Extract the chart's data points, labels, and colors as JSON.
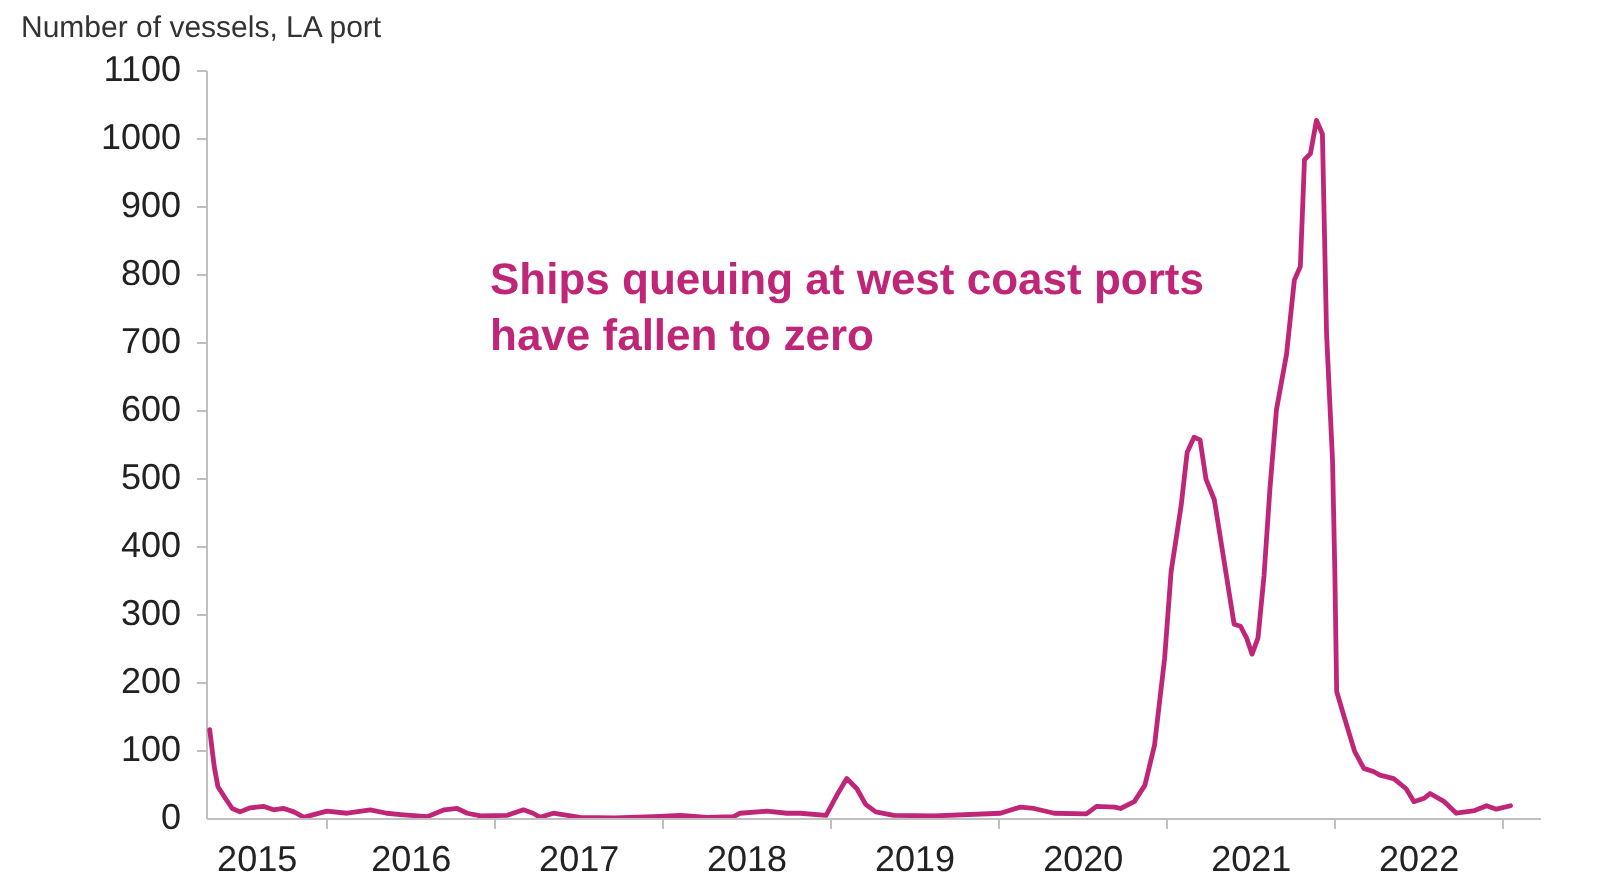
{
  "chart_data": {
    "type": "line",
    "ylabel": "Number of vessels, LA port",
    "annotations": [
      "Ships queuing at west coast ports\nhave fallen to zero"
    ],
    "x": [
      "2015-04-22",
      "2015-05-02",
      "2015-05-10",
      "2015-05-26",
      "2015-06-10",
      "2015-06-27",
      "2015-07-19",
      "2015-08-18",
      "2015-09-08",
      "2015-09-30",
      "2015-10-22",
      "2015-11-13",
      "2015-12-04",
      "2016-01-02",
      "2016-02-15",
      "2016-04-05",
      "2016-05-11",
      "2016-06-10",
      "2016-08-07",
      "2016-09-13",
      "2016-10-11",
      "2016-11-02",
      "2016-12-01",
      "2017-01-28",
      "2017-03-04",
      "2017-03-25",
      "2017-04-09",
      "2017-05-08",
      "2017-07-05",
      "2017-09-17",
      "2017-12-12",
      "2018-02-09",
      "2018-04-07",
      "2018-06-04",
      "2018-06-18",
      "2018-08-15",
      "2018-09-28",
      "2018-10-27",
      "2018-12-22",
      "2019-01-14",
      "2019-02-05",
      "2019-02-27",
      "2019-03-18",
      "2019-04-09",
      "2019-05-18",
      "2019-08-14",
      "2020-01-05",
      "2020-02-17",
      "2020-03-18",
      "2020-05-01",
      "2020-07-10",
      "2020-08-01",
      "2020-09-10",
      "2020-09-22",
      "2020-10-22",
      "2020-11-14",
      "2020-12-05",
      "2020-12-27",
      "2021-01-10",
      "2021-02-01",
      "2021-02-14",
      "2021-03-01",
      "2021-03-14",
      "2021-03-27",
      "2021-04-14",
      "2021-05-05",
      "2021-05-27",
      "2021-06-10",
      "2021-06-23",
      "2021-07-05",
      "2021-07-18",
      "2021-07-31",
      "2021-08-13",
      "2021-08-27",
      "2021-09-18",
      "2021-10-05",
      "2021-10-18",
      "2021-10-27",
      "2021-11-09",
      "2021-11-22",
      "2021-12-05",
      "2021-12-14",
      "2021-12-27",
      "2022-01-01",
      "2022-01-05",
      "2022-01-22",
      "2022-02-13",
      "2022-03-05",
      "2022-03-27",
      "2022-04-09",
      "2022-05-09",
      "2022-06-05",
      "2022-06-22",
      "2022-07-14",
      "2022-07-27",
      "2022-08-27",
      "2022-09-22",
      "2022-11-01",
      "2022-11-27",
      "2022-12-18",
      "2023-01-18"
    ],
    "series": [
      {
        "color": "#c02678",
        "values": [
          130,
          75,
          46,
          29,
          14,
          9,
          15,
          17,
          12,
          14,
          9,
          1,
          5,
          10,
          7,
          12,
          7,
          5,
          2,
          12,
          14,
          7,
          3,
          4,
          12,
          7,
          1,
          7,
          1,
          0,
          2,
          4,
          1,
          2,
          7,
          10,
          7,
          7,
          4,
          33,
          58,
          43,
          20,
          9,
          4,
          3,
          7,
          16,
          14,
          7,
          6,
          17,
          16,
          14,
          24,
          48,
          107,
          235,
          362,
          460,
          538,
          560,
          556,
          498,
          468,
          379,
          285,
          282,
          265,
          241,
          265,
          356,
          485,
          600,
          682,
          791,
          811,
          968,
          977,
          1026,
          1006,
          712,
          526,
          362,
          186,
          147,
          98,
          73,
          68,
          63,
          58,
          43,
          24,
          29,
          36,
          24,
          7,
          11,
          18,
          13,
          18
        ]
      }
    ],
    "xlim": [
      "2015-04-14",
      "2023-03-23"
    ],
    "xticks": [
      {
        "value": "2015-08-01",
        "label": "2015"
      },
      {
        "value": "2016-01-01",
        "label": null
      },
      {
        "value": "2016-07-01",
        "label": "2016"
      },
      {
        "value": "2017-01-01",
        "label": null
      },
      {
        "value": "2017-07-01",
        "label": "2017"
      },
      {
        "value": "2018-01-01",
        "label": null
      },
      {
        "value": "2018-07-01",
        "label": "2018"
      },
      {
        "value": "2019-01-01",
        "label": null
      },
      {
        "value": "2019-07-01",
        "label": "2019"
      },
      {
        "value": "2020-01-01",
        "label": null
      },
      {
        "value": "2020-07-01",
        "label": "2020"
      },
      {
        "value": "2021-01-01",
        "label": null
      },
      {
        "value": "2021-07-01",
        "label": "2021"
      },
      {
        "value": "2022-01-01",
        "label": null
      },
      {
        "value": "2022-07-01",
        "label": "2022"
      },
      {
        "value": "2023-01-01",
        "label": null
      }
    ],
    "ylim": [
      0,
      1100
    ],
    "yticks": [
      0,
      100,
      200,
      300,
      400,
      500,
      600,
      700,
      800,
      900,
      1000,
      1100
    ]
  }
}
